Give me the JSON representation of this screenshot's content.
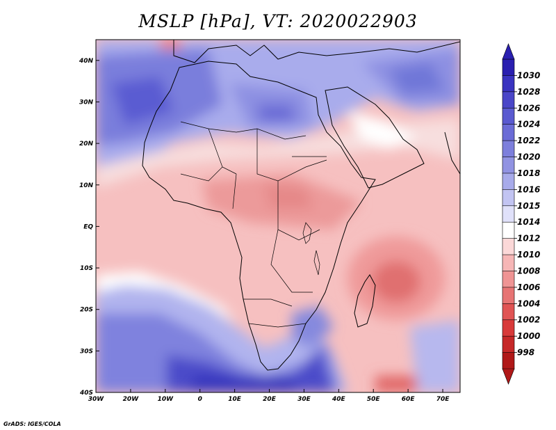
{
  "title": "MSLP [hPa], VT: 2020022903",
  "credit": "GrADS: IGES/COLA",
  "map": {
    "lon_labels": [
      "30W",
      "20W",
      "10W",
      "0",
      "10E",
      "20E",
      "30E",
      "40E",
      "50E",
      "60E",
      "70E"
    ],
    "lat_labels": [
      "40N",
      "30N",
      "20N",
      "10N",
      "EQ",
      "10S",
      "20S",
      "30S",
      "40S"
    ],
    "extent": {
      "lon": [
        -30,
        75
      ],
      "lat": [
        -40,
        45
      ]
    }
  },
  "colorbar": {
    "labels": [
      "1030",
      "1028",
      "1026",
      "1024",
      "1022",
      "1020",
      "1018",
      "1016",
      "1015",
      "1014",
      "1012",
      "1010",
      "1008",
      "1006",
      "1004",
      "1002",
      "1000",
      "998"
    ],
    "colors": [
      "#2a1fb0",
      "#3a33c0",
      "#4a46c8",
      "#5a5ad0",
      "#6b6cd6",
      "#7d7fdc",
      "#9193e2",
      "#a8abea",
      "#c2c4f2",
      "#e0e1fa",
      "#ffffff",
      "#fbd8d8",
      "#f6b6b6",
      "#ef9494",
      "#e77474",
      "#e05454",
      "#d83a3a",
      "#c62828",
      "#b01818"
    ]
  }
}
